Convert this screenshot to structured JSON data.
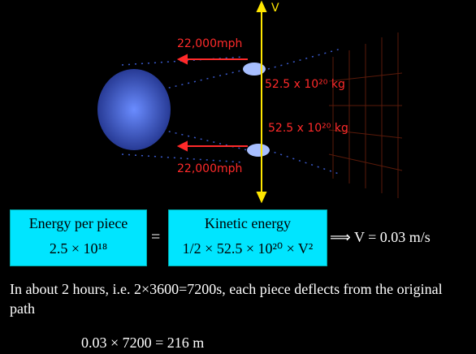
{
  "figure": {
    "velocity_label": "V",
    "speed_top": "22,000mph",
    "speed_bottom": "22,000mph",
    "mass_top": "52.5 x 10²⁰ kg",
    "mass_bottom": "52.5 x 10²⁰ kg"
  },
  "equation": {
    "left_box": {
      "title": "Energy per piece",
      "value": "2.5 × 10¹⁸"
    },
    "equals": "=",
    "right_box": {
      "title": "Kinetic energy",
      "value": "1/2 × 52.5 × 10²⁰ × V²"
    },
    "result": "⟹ V = 0.03 m/s"
  },
  "text": {
    "paragraph": "In about 2 hours, i.e. 2×3600=7200s, each piece deflects from the original path",
    "calculation": "0.03 × 7200 = 216 m"
  }
}
